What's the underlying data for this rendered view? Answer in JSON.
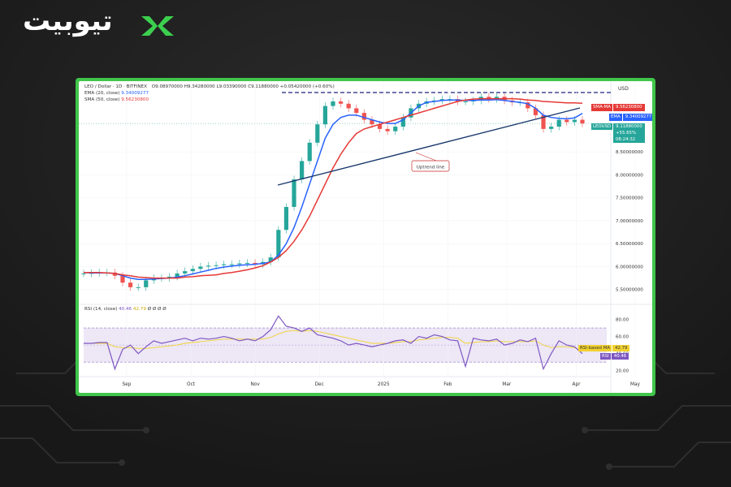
{
  "brand": {
    "name": "تیوبیت"
  },
  "header": {
    "symbol_line": "LEO / Dollar · 1D · BITFINEX",
    "ohlc": "O9.08970000 H9.34280000 L9.03390000 C9.11880000 +0.05420000 (+0.60%)",
    "ema_label": "EMA (20, close)",
    "ema_value": "9.34009277",
    "sma_label": "SMA (50, close)",
    "sma_value": "9.56230800",
    "currency": "USD",
    "rsi_label": "RSI (14, close)",
    "rsi_value": "40.46",
    "rsi_ma_value": "42.79",
    "rsi_extra": "Ø Ø Ø Ø"
  },
  "badges": {
    "sma": {
      "name": "SMA-MA",
      "value": "9.56230800",
      "color": "#e53935"
    },
    "ema": {
      "name": "EMA",
      "value": "9.34009277",
      "color": "#2962ff"
    },
    "price": {
      "name": "LEOUSD",
      "value": "9.11880000",
      "change": "+55.65%",
      "time": "08:24:32",
      "color": "#26a69a"
    },
    "rsi_ma": {
      "name": "RSI-based MA",
      "value": "42.79",
      "color": "#f2d22e"
    },
    "rsi": {
      "name": "RSI",
      "value": "40.46",
      "color": "#7e57c2"
    }
  },
  "annotation": {
    "uptrend": "Uptrend line"
  },
  "chart_data": [
    {
      "type": "line",
      "title": "LEO / Dollar · 1D · BITFINEX",
      "x_ticks": [
        "Sep",
        "Oct",
        "Nov",
        "Dec",
        "2025",
        "Feb",
        "Mar",
        "Apr",
        "May"
      ],
      "y_ticks": [
        "5.50000000",
        "6.00000000",
        "6.50000000",
        "7.00000000",
        "7.50000000",
        "8.00000000",
        "8.50000000"
      ],
      "ylim": [
        5.3,
        9.9
      ],
      "series": [
        {
          "name": "LEOUSD",
          "color": "#26a69a",
          "values": [
            5.85,
            5.86,
            5.87,
            5.87,
            5.8,
            5.65,
            5.55,
            5.55,
            5.7,
            5.75,
            5.75,
            5.78,
            5.85,
            5.9,
            5.95,
            6.0,
            6.02,
            6.03,
            6.05,
            6.05,
            6.07,
            6.08,
            6.05,
            6.1,
            6.2,
            6.8,
            7.3,
            7.9,
            8.3,
            8.7,
            9.1,
            9.5,
            9.6,
            9.55,
            9.45,
            9.35,
            9.2,
            9.1,
            9.0,
            8.95,
            9.05,
            9.25,
            9.45,
            9.55,
            9.6,
            9.62,
            9.65,
            9.65,
            9.6,
            9.6,
            9.62,
            9.7,
            9.65,
            9.7,
            9.62,
            9.58,
            9.58,
            9.45,
            9.3,
            9.0,
            9.05,
            9.2,
            9.15,
            9.2,
            9.12
          ]
        },
        {
          "name": "EMA (20, close)",
          "color": "#2962ff",
          "values": [
            5.87,
            5.86,
            5.86,
            5.86,
            5.85,
            5.8,
            5.75,
            5.72,
            5.72,
            5.73,
            5.74,
            5.75,
            5.77,
            5.8,
            5.84,
            5.88,
            5.92,
            5.96,
            5.99,
            6.01,
            6.03,
            6.04,
            6.05,
            6.07,
            6.1,
            6.25,
            6.5,
            6.85,
            7.3,
            7.8,
            8.3,
            8.8,
            9.1,
            9.25,
            9.3,
            9.3,
            9.25,
            9.2,
            9.15,
            9.12,
            9.12,
            9.2,
            9.35,
            9.5,
            9.58,
            9.6,
            9.62,
            9.63,
            9.63,
            9.62,
            9.62,
            9.63,
            9.63,
            9.64,
            9.62,
            9.6,
            9.58,
            9.55,
            9.45,
            9.3,
            9.25,
            9.23,
            9.22,
            9.24,
            9.34
          ]
        },
        {
          "name": "SMA (50, close)",
          "color": "#e53935",
          "values": [
            5.87,
            5.87,
            5.87,
            5.86,
            5.85,
            5.82,
            5.8,
            5.77,
            5.76,
            5.75,
            5.75,
            5.75,
            5.75,
            5.77,
            5.78,
            5.8,
            5.81,
            5.82,
            5.85,
            5.87,
            5.9,
            5.93,
            5.97,
            6.02,
            6.1,
            6.2,
            6.35,
            6.55,
            6.8,
            7.1,
            7.45,
            7.8,
            8.15,
            8.45,
            8.7,
            8.9,
            9.0,
            9.05,
            9.1,
            9.15,
            9.2,
            9.25,
            9.3,
            9.35,
            9.4,
            9.45,
            9.5,
            9.55,
            9.6,
            9.63,
            9.65,
            9.66,
            9.66,
            9.66,
            9.66,
            9.66,
            9.65,
            9.63,
            9.62,
            9.6,
            9.59,
            9.58,
            9.57,
            9.57,
            9.56
          ]
        }
      ]
    },
    {
      "type": "line",
      "title": "RSI (14, close)",
      "y_ticks": [
        "20.00",
        "40.00",
        "60.00",
        "80.00"
      ],
      "ylim": [
        15,
        90
      ],
      "bands": [
        30,
        70
      ],
      "series": [
        {
          "name": "RSI",
          "color": "#7e57c2",
          "values": [
            52,
            52,
            53,
            53,
            22,
            45,
            50,
            40,
            48,
            55,
            52,
            54,
            56,
            58,
            55,
            58,
            57,
            58,
            60,
            58,
            55,
            57,
            55,
            60,
            68,
            84,
            72,
            70,
            66,
            70,
            62,
            60,
            58,
            55,
            50,
            52,
            50,
            48,
            50,
            52,
            55,
            56,
            52,
            60,
            58,
            62,
            60,
            56,
            55,
            25,
            58,
            56,
            55,
            57,
            50,
            52,
            56,
            54,
            58,
            22,
            40,
            55,
            50,
            48,
            40
          ]
        },
        {
          "name": "RSI-based MA",
          "color": "#f2d22e",
          "values": [
            52,
            52,
            52,
            52,
            48,
            47,
            47,
            46,
            46,
            47,
            48,
            49,
            50,
            52,
            53,
            54,
            55,
            56,
            57,
            57,
            57,
            57,
            57,
            57,
            59,
            63,
            66,
            67,
            66,
            67,
            66,
            64,
            62,
            60,
            58,
            56,
            54,
            52,
            52,
            52,
            53,
            54,
            54,
            56,
            57,
            58,
            59,
            59,
            58,
            52,
            53,
            54,
            54,
            55,
            54,
            54,
            54,
            54,
            55,
            50,
            47,
            48,
            48,
            47,
            42.79
          ]
        }
      ]
    }
  ]
}
